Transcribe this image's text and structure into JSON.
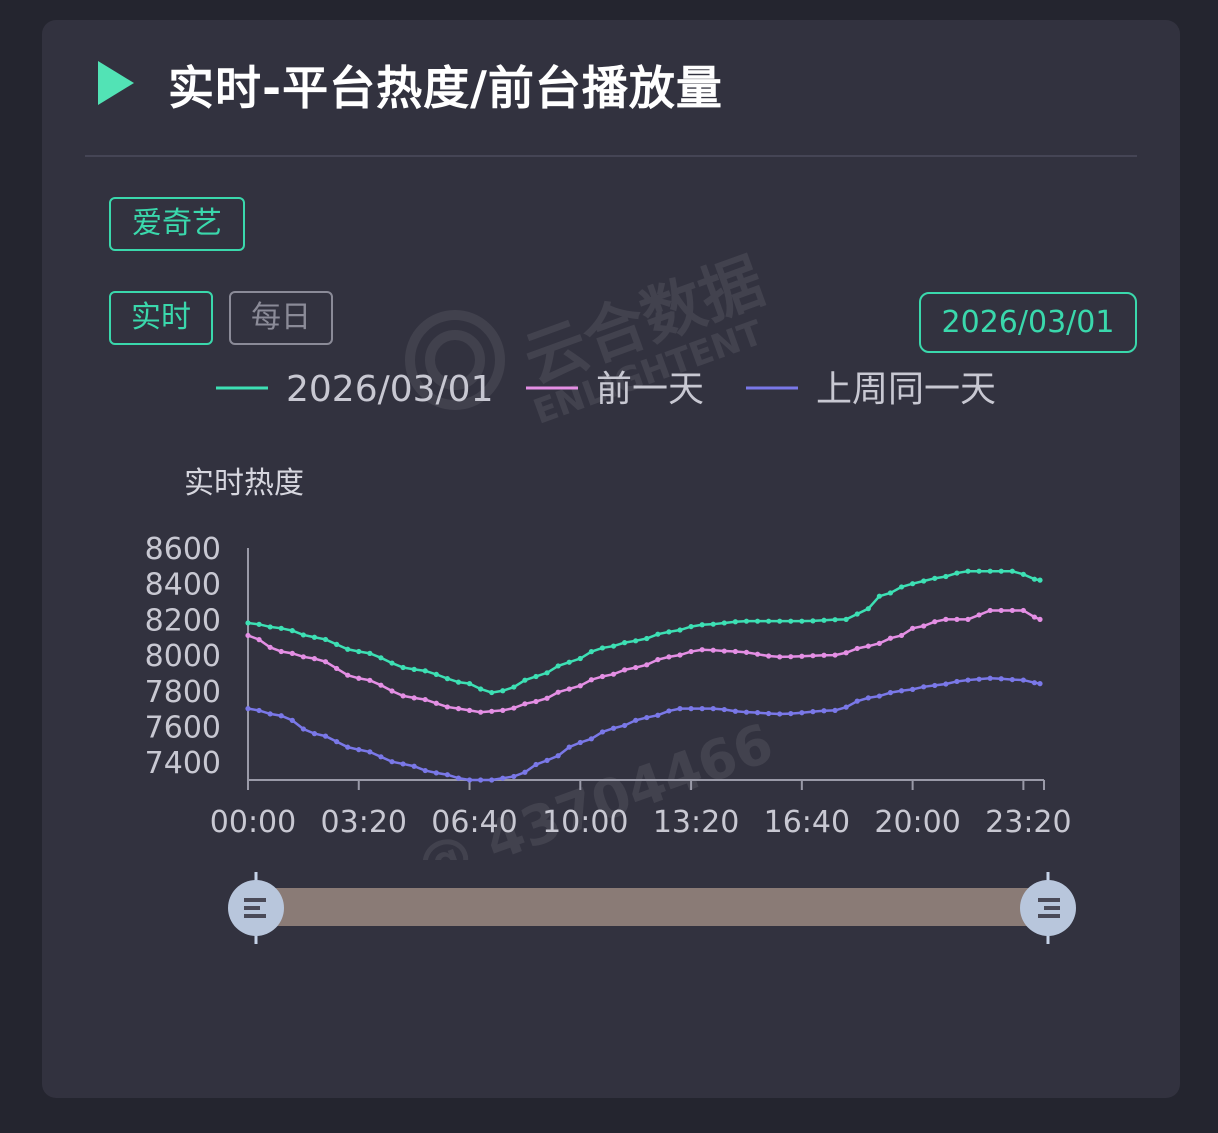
{
  "header": {
    "title": "实时-平台热度/前台播放量"
  },
  "platform_tag": "爱奇艺",
  "mode_tabs": [
    {
      "label": "实时",
      "active": true
    },
    {
      "label": "每日",
      "active": false
    }
  ],
  "date_button": "2026/03/01",
  "watermark": {
    "brand": "云合数据",
    "brand_en": "ENLIGHTENT",
    "id": "@ 43704466"
  },
  "colors": {
    "accent": "#3ad8ac",
    "series_today": "#3de0b4",
    "series_yesterday": "#e48fe4",
    "series_last_week": "#7a78e8",
    "slider": "#8a7b76"
  },
  "chart_data": {
    "type": "line",
    "ylabel": "实时热度",
    "ylim": [
      7300,
      8600
    ],
    "yticks": [
      7400,
      7600,
      7800,
      8000,
      8200,
      8400,
      8600
    ],
    "xticks": [
      "00:00",
      "03:20",
      "06:40",
      "10:00",
      "13:20",
      "16:40",
      "20:00",
      "23:20"
    ],
    "x_range_minutes": [
      0,
      1430
    ],
    "sample_interval_minutes": 20,
    "legend": [
      "2026/03/01",
      "前一天",
      "上周同一天"
    ],
    "series": [
      {
        "name": "2026/03/01",
        "color": "#3de0b4",
        "anchors": [
          [
            0,
            8180
          ],
          [
            60,
            8150
          ],
          [
            120,
            8100
          ],
          [
            200,
            8020
          ],
          [
            300,
            7920
          ],
          [
            400,
            7840
          ],
          [
            420,
            7810
          ],
          [
            440,
            7790
          ],
          [
            460,
            7800
          ],
          [
            520,
            7880
          ],
          [
            580,
            7960
          ],
          [
            640,
            8040
          ],
          [
            700,
            8080
          ],
          [
            760,
            8130
          ],
          [
            820,
            8170
          ],
          [
            900,
            8190
          ],
          [
            1000,
            8190
          ],
          [
            1080,
            8200
          ],
          [
            1120,
            8260
          ],
          [
            1140,
            8330
          ],
          [
            1200,
            8400
          ],
          [
            1240,
            8430
          ],
          [
            1300,
            8470
          ],
          [
            1380,
            8470
          ],
          [
            1430,
            8420
          ]
        ]
      },
      {
        "name": "前一天",
        "color": "#e48fe4",
        "anchors": [
          [
            0,
            8110
          ],
          [
            60,
            8020
          ],
          [
            120,
            7980
          ],
          [
            200,
            7870
          ],
          [
            300,
            7760
          ],
          [
            380,
            7700
          ],
          [
            420,
            7680
          ],
          [
            460,
            7690
          ],
          [
            520,
            7740
          ],
          [
            580,
            7810
          ],
          [
            640,
            7880
          ],
          [
            700,
            7930
          ],
          [
            760,
            7990
          ],
          [
            820,
            8030
          ],
          [
            880,
            8020
          ],
          [
            960,
            7990
          ],
          [
            1060,
            8000
          ],
          [
            1120,
            8050
          ],
          [
            1180,
            8110
          ],
          [
            1200,
            8150
          ],
          [
            1260,
            8200
          ],
          [
            1300,
            8200
          ],
          [
            1340,
            8250
          ],
          [
            1400,
            8250
          ],
          [
            1430,
            8200
          ]
        ]
      },
      {
        "name": "上周同一天",
        "color": "#7a78e8",
        "anchors": [
          [
            0,
            7700
          ],
          [
            60,
            7660
          ],
          [
            120,
            7560
          ],
          [
            200,
            7470
          ],
          [
            280,
            7390
          ],
          [
            340,
            7340
          ],
          [
            400,
            7300
          ],
          [
            440,
            7300
          ],
          [
            480,
            7320
          ],
          [
            540,
            7410
          ],
          [
            600,
            7510
          ],
          [
            660,
            7590
          ],
          [
            720,
            7650
          ],
          [
            780,
            7700
          ],
          [
            840,
            7700
          ],
          [
            900,
            7680
          ],
          [
            960,
            7670
          ],
          [
            1060,
            7690
          ],
          [
            1120,
            7760
          ],
          [
            1180,
            7800
          ],
          [
            1240,
            7830
          ],
          [
            1300,
            7860
          ],
          [
            1340,
            7870
          ],
          [
            1400,
            7860
          ],
          [
            1430,
            7840
          ]
        ]
      }
    ]
  }
}
